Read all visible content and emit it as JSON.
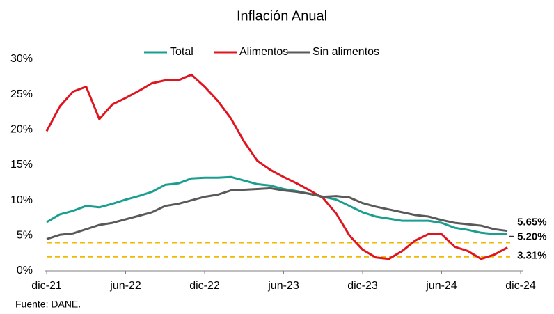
{
  "chart_data": {
    "type": "line",
    "title": "Inflación Anual",
    "source": "Fuente: DANE.",
    "categories": [
      "dic-21",
      null,
      null,
      null,
      null,
      null,
      "jun-22",
      null,
      null,
      null,
      null,
      null,
      "dic-22",
      null,
      null,
      null,
      null,
      null,
      "jun-23",
      null,
      null,
      null,
      null,
      null,
      "dic-23",
      null,
      null,
      null,
      null,
      null,
      "jun-24",
      null,
      null,
      null,
      null,
      null,
      "dic-24"
    ],
    "series": [
      {
        "name": "Total",
        "color": "#1a9e8f",
        "values": [
          6.9,
          8.0,
          8.5,
          9.2,
          9.0,
          9.5,
          10.1,
          10.6,
          11.2,
          12.2,
          12.4,
          13.1,
          13.2,
          13.2,
          13.3,
          12.8,
          12.3,
          12.1,
          11.6,
          11.3,
          10.9,
          10.5,
          10.1,
          9.2,
          8.3,
          7.7,
          7.4,
          7.1,
          7.1,
          7.1,
          6.8,
          6.1,
          5.8,
          5.4,
          5.2,
          5.2,
          null
        ],
        "value_labels": [
          null,
          null,
          null,
          null,
          null,
          null,
          null,
          null,
          null,
          null,
          null,
          null,
          null,
          null,
          null,
          null,
          null,
          null,
          null,
          null,
          null,
          null,
          null,
          null,
          null,
          null,
          null,
          null,
          null,
          null,
          null,
          null,
          null,
          null,
          null,
          "5.20%",
          null
        ]
      },
      {
        "name": "Alimentos",
        "color": "#e0141e",
        "values": [
          19.8,
          23.3,
          25.4,
          26.1,
          21.5,
          23.6,
          24.5,
          25.5,
          26.6,
          27.0,
          27.0,
          27.8,
          26.1,
          24.1,
          21.6,
          18.3,
          15.6,
          14.3,
          13.3,
          12.4,
          11.4,
          10.3,
          8.1,
          5.0,
          3.0,
          1.9,
          1.7,
          2.8,
          4.3,
          5.2,
          5.2,
          3.4,
          2.8,
          1.7,
          2.3,
          3.31,
          null
        ],
        "value_labels": [
          null,
          null,
          null,
          null,
          null,
          null,
          null,
          null,
          null,
          null,
          null,
          null,
          null,
          null,
          null,
          null,
          null,
          null,
          null,
          null,
          null,
          null,
          null,
          null,
          null,
          null,
          null,
          null,
          null,
          null,
          null,
          null,
          null,
          null,
          null,
          "3.31%",
          null
        ]
      },
      {
        "name": "Sin alimentos",
        "color": "#595959",
        "values": [
          4.5,
          5.1,
          5.3,
          5.9,
          6.5,
          6.8,
          7.3,
          7.8,
          8.3,
          9.2,
          9.5,
          10.0,
          10.5,
          10.8,
          11.4,
          11.5,
          11.6,
          11.7,
          11.4,
          11.2,
          10.9,
          10.5,
          10.6,
          10.4,
          9.6,
          9.1,
          8.7,
          8.3,
          7.9,
          7.7,
          7.2,
          6.8,
          6.6,
          6.4,
          5.9,
          5.65,
          null
        ],
        "value_labels": [
          null,
          null,
          null,
          null,
          null,
          null,
          null,
          null,
          null,
          null,
          null,
          null,
          null,
          null,
          null,
          null,
          null,
          null,
          null,
          null,
          null,
          null,
          null,
          null,
          null,
          null,
          null,
          null,
          null,
          null,
          null,
          null,
          null,
          null,
          null,
          "5.65%",
          null
        ]
      }
    ],
    "ylim": [
      0,
      30
    ],
    "yticks": [
      {
        "value": 0,
        "label": "0%"
      },
      {
        "value": 5,
        "label": "5%"
      },
      {
        "value": 10,
        "label": "10%"
      },
      {
        "value": 15,
        "label": "15%"
      },
      {
        "value": 20,
        "label": "20%"
      },
      {
        "value": 25,
        "label": "25%"
      },
      {
        "value": 30,
        "label": "30%"
      }
    ],
    "reference_lines": [
      4,
      2
    ],
    "reference_color": "#f0b800",
    "grid": false,
    "legend": "top"
  }
}
